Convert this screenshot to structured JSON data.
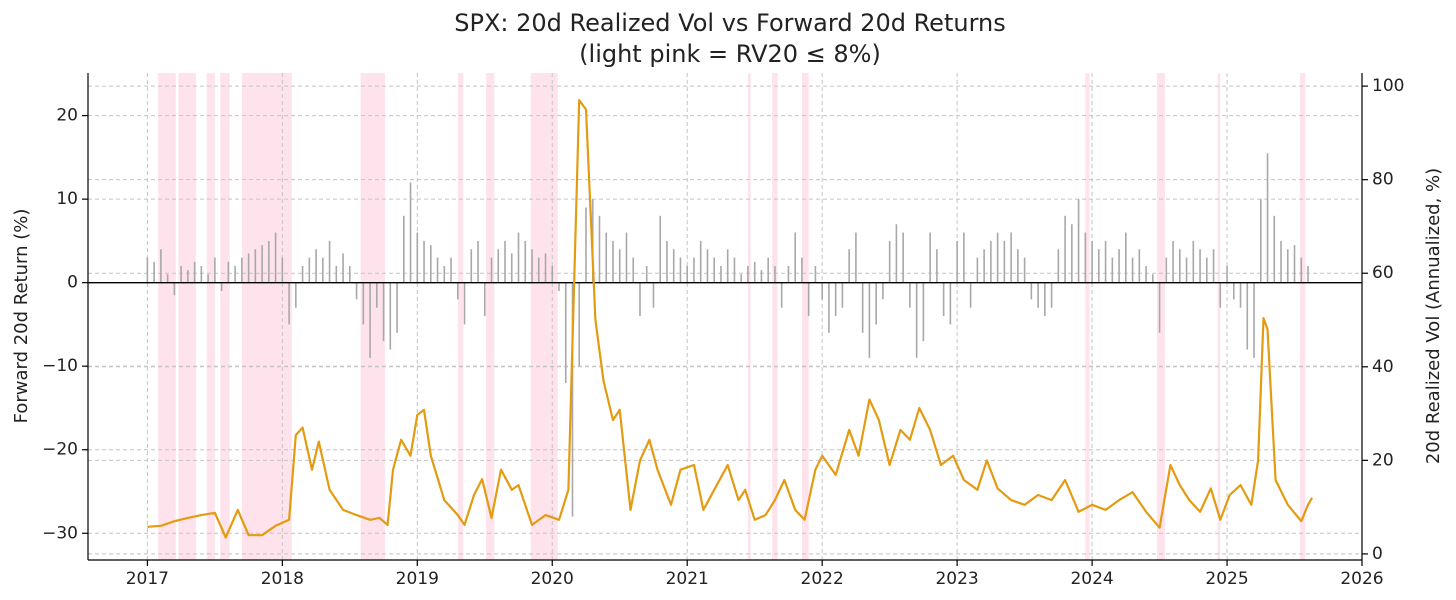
{
  "chart_data": {
    "type": "bar_line_dual_axis",
    "title": "SPX: 20d Realized Vol vs Forward 20d Returns",
    "subtitle": "(light pink = RV20 ≤ 8%)",
    "ylabel": "Forward 20d Return (%)",
    "y2label": "20d Realized Vol (Annualized, %)",
    "xlim": [
      2016.56,
      2026.0
    ],
    "xticks": [
      2017,
      2018,
      2019,
      2020,
      2021,
      2022,
      2023,
      2024,
      2025,
      2026
    ],
    "ylim": [
      -33.2,
      25.1
    ],
    "yticks": [
      {
        "value": -30,
        "label": "−30"
      },
      {
        "value": -20,
        "label": "−20"
      },
      {
        "value": -10,
        "label": "−10"
      },
      0,
      10,
      20
    ],
    "y2lim": [
      -1.3,
      102.8
    ],
    "y2ticks": [
      0,
      20,
      40,
      60,
      80,
      100
    ],
    "grid": true,
    "shade_color": "#ffe3ec",
    "shaded_spans": [
      [
        2017.08,
        2017.21
      ],
      [
        2017.23,
        2017.36
      ],
      [
        2017.44,
        2017.5
      ],
      [
        2017.54,
        2017.61
      ],
      [
        2017.7,
        2018.07
      ],
      [
        2018.58,
        2018.76
      ],
      [
        2019.3,
        2019.34
      ],
      [
        2019.51,
        2019.57
      ],
      [
        2019.84,
        2020.04
      ],
      [
        2021.45,
        2021.47
      ],
      [
        2021.63,
        2021.67
      ],
      [
        2021.85,
        2021.9
      ],
      [
        2023.95,
        2023.98
      ],
      [
        2024.48,
        2024.54
      ],
      [
        2024.93,
        2024.95
      ],
      [
        2025.54,
        2025.58
      ]
    ],
    "series": [
      {
        "type": "bar",
        "axis": "y",
        "color": "#a8a8a8",
        "x": [
          2017,
          2017.05,
          2017.1,
          2017.15,
          2017.2,
          2017.25,
          2017.3,
          2017.35,
          2017.4,
          2017.45,
          2017.5,
          2017.55,
          2017.6,
          2017.65,
          2017.7,
          2017.75,
          2017.8,
          2017.85,
          2017.9,
          2017.95,
          2018,
          2018.05,
          2018.1,
          2018.15,
          2018.2,
          2018.25,
          2018.3,
          2018.35,
          2018.4,
          2018.45,
          2018.5,
          2018.55,
          2018.6,
          2018.65,
          2018.7,
          2018.75,
          2018.8,
          2018.85,
          2018.9,
          2018.95,
          2019,
          2019.05,
          2019.1,
          2019.15,
          2019.2,
          2019.25,
          2019.3,
          2019.35,
          2019.4,
          2019.45,
          2019.5,
          2019.55,
          2019.6,
          2019.65,
          2019.7,
          2019.75,
          2019.8,
          2019.85,
          2019.9,
          2019.95,
          2020,
          2020.05,
          2020.1,
          2020.15,
          2020.2,
          2020.25,
          2020.3,
          2020.35,
          2020.4,
          2020.45,
          2020.5,
          2020.55,
          2020.6,
          2020.65,
          2020.7,
          2020.75,
          2020.8,
          2020.85,
          2020.9,
          2020.95,
          2021,
          2021.05,
          2021.1,
          2021.15,
          2021.2,
          2021.25,
          2021.3,
          2021.35,
          2021.4,
          2021.45,
          2021.5,
          2021.55,
          2021.6,
          2021.65,
          2021.7,
          2021.75,
          2021.8,
          2021.85,
          2021.9,
          2021.95,
          2022,
          2022.05,
          2022.1,
          2022.15,
          2022.2,
          2022.25,
          2022.3,
          2022.35,
          2022.4,
          2022.45,
          2022.5,
          2022.55,
          2022.6,
          2022.65,
          2022.7,
          2022.75,
          2022.8,
          2022.85,
          2022.9,
          2022.95,
          2023,
          2023.05,
          2023.1,
          2023.15,
          2023.2,
          2023.25,
          2023.3,
          2023.35,
          2023.4,
          2023.45,
          2023.5,
          2023.55,
          2023.6,
          2023.65,
          2023.7,
          2023.75,
          2023.8,
          2023.85,
          2023.9,
          2023.95,
          2024,
          2024.05,
          2024.1,
          2024.15,
          2024.2,
          2024.25,
          2024.3,
          2024.35,
          2024.4,
          2024.45,
          2024.5,
          2024.55,
          2024.6,
          2024.65,
          2024.7,
          2024.75,
          2024.8,
          2024.85,
          2024.9,
          2024.95,
          2025,
          2025.05,
          2025.1,
          2025.15,
          2025.2,
          2025.25,
          2025.3,
          2025.35,
          2025.4,
          2025.45,
          2025.5,
          2025.55,
          2025.6
        ],
        "values": [
          3,
          2.5,
          4,
          1,
          -1.5,
          2,
          1.5,
          2.5,
          2,
          1,
          3,
          -1,
          2.5,
          2,
          3,
          3.5,
          4,
          4.5,
          5,
          6,
          3,
          -5,
          -3,
          2,
          3,
          4,
          3,
          5,
          2,
          3.5,
          2,
          -2,
          -5,
          -9,
          -3,
          -7,
          -8,
          -6,
          8,
          12,
          6,
          5,
          4.5,
          3,
          2,
          3,
          -2,
          -5,
          4,
          5,
          -4,
          3,
          4,
          5,
          3.5,
          6,
          5,
          4,
          3,
          3.5,
          2,
          -1,
          -12,
          -28,
          -10,
          9,
          10,
          8,
          6,
          5,
          4,
          6,
          3,
          -4,
          2,
          -3,
          8,
          5,
          4,
          3,
          2,
          3,
          5,
          4,
          3,
          2,
          4,
          3,
          1,
          2,
          2.5,
          1.5,
          3,
          2,
          -3,
          2,
          6,
          3,
          -4,
          2,
          -2,
          -6,
          -4,
          -3,
          4,
          6,
          -6,
          -9,
          -5,
          -2,
          5,
          7,
          6,
          -3,
          -9,
          -7,
          6,
          4,
          -4,
          -5,
          5,
          6,
          -3,
          3,
          4,
          5,
          6,
          5,
          6,
          4,
          3,
          -2,
          -3,
          -4,
          -3,
          4,
          8,
          7,
          10,
          6,
          5,
          4,
          5,
          3,
          4,
          6,
          3,
          4,
          2,
          1,
          -6,
          3,
          5,
          4,
          3,
          5,
          4,
          3,
          4,
          -3,
          2,
          -2,
          -3,
          -8,
          -9,
          10,
          15.5,
          8,
          5,
          4,
          4.5,
          3,
          2
        ]
      },
      {
        "type": "line",
        "axis": "y2",
        "color": "#e39b12",
        "x": [
          2017,
          2017.1,
          2017.2,
          2017.3,
          2017.4,
          2017.5,
          2017.58,
          2017.67,
          2017.75,
          2017.85,
          2017.95,
          2018.05,
          2018.1,
          2018.15,
          2018.22,
          2018.27,
          2018.35,
          2018.45,
          2018.55,
          2018.65,
          2018.72,
          2018.78,
          2018.82,
          2018.88,
          2018.95,
          2019,
          2019.05,
          2019.1,
          2019.2,
          2019.3,
          2019.35,
          2019.42,
          2019.48,
          2019.55,
          2019.62,
          2019.7,
          2019.75,
          2019.85,
          2019.95,
          2020.05,
          2020.12,
          2020.2,
          2020.25,
          2020.32,
          2020.38,
          2020.45,
          2020.5,
          2020.58,
          2020.65,
          2020.72,
          2020.78,
          2020.88,
          2020.95,
          2021.05,
          2021.12,
          2021.2,
          2021.3,
          2021.38,
          2021.43,
          2021.5,
          2021.58,
          2021.65,
          2021.72,
          2021.8,
          2021.87,
          2021.95,
          2022,
          2022.1,
          2022.2,
          2022.27,
          2022.35,
          2022.42,
          2022.5,
          2022.58,
          2022.65,
          2022.72,
          2022.8,
          2022.88,
          2022.97,
          2023.05,
          2023.15,
          2023.22,
          2023.3,
          2023.4,
          2023.5,
          2023.6,
          2023.7,
          2023.8,
          2023.9,
          2024,
          2024.1,
          2024.2,
          2024.3,
          2024.4,
          2024.5,
          2024.58,
          2024.65,
          2024.72,
          2024.8,
          2024.88,
          2024.95,
          2025.02,
          2025.1,
          2025.18,
          2025.23,
          2025.27,
          2025.3,
          2025.36,
          2025.45,
          2025.55,
          2025.6,
          2025.63
        ],
        "values": [
          5.8,
          6,
          7,
          7.7,
          8.3,
          8.8,
          3.5,
          9.4,
          4,
          4,
          6,
          7.3,
          25.4,
          27,
          18,
          24,
          13.7,
          9.4,
          8.3,
          7.3,
          7.7,
          6.2,
          18,
          24.4,
          21,
          29.7,
          30.8,
          21,
          11.5,
          8.3,
          6.2,
          12.6,
          16,
          7.7,
          18,
          13.7,
          14.7,
          6.2,
          8.3,
          7.3,
          13.7,
          97,
          95,
          50,
          37,
          28.6,
          30.8,
          9.4,
          20,
          24.4,
          18,
          10.5,
          18,
          19,
          9.4,
          13.7,
          19,
          11.5,
          13.7,
          7.3,
          8.3,
          11.5,
          15.8,
          9.4,
          7.3,
          18,
          21,
          16.9,
          26.5,
          21,
          33,
          28.6,
          19,
          26.5,
          24.4,
          31.2,
          26.5,
          19,
          21,
          15.8,
          13.7,
          20,
          14,
          11.5,
          10.5,
          12.6,
          11.5,
          15.8,
          9,
          10.5,
          9.4,
          11.5,
          13.2,
          9,
          5.6,
          19,
          14.7,
          11.5,
          9,
          14,
          7.3,
          12.6,
          14.7,
          10.5,
          20,
          50.4,
          48,
          15.8,
          10.5,
          7,
          10.5,
          12
        ]
      }
    ]
  }
}
